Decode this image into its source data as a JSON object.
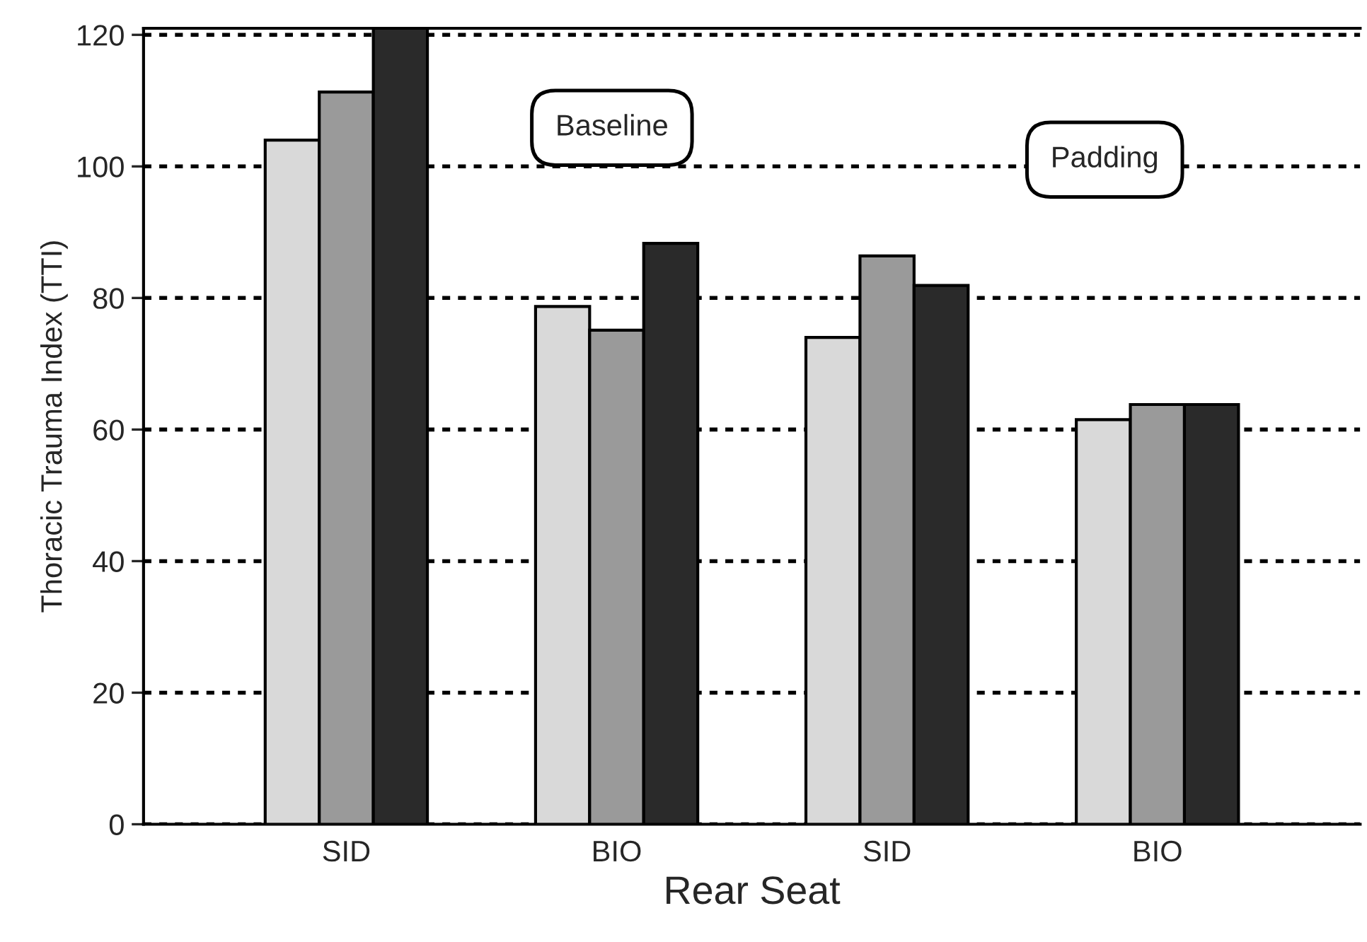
{
  "chart_data": {
    "type": "bar",
    "ylabel": "Thoracic Trauma Index (TTI)",
    "xlabel": "Rear Seat",
    "categories": [
      "SID",
      "BIO",
      "SID",
      "BIO"
    ],
    "series": [
      {
        "color": "#d9d9d9",
        "values": [
          104,
          78.7,
          74,
          61.5
        ]
      },
      {
        "color": "#9a9a9a",
        "values": [
          111.3,
          75.1,
          86.4,
          63.8
        ]
      },
      {
        "color": "#2a2a2a",
        "values": [
          121,
          88.3,
          81.9,
          63.8
        ]
      }
    ],
    "ylim": [
      0,
      121
    ],
    "yticks": [
      0,
      20,
      40,
      60,
      80,
      100,
      120
    ],
    "grid": "y",
    "line_style": "dotted",
    "annotations": [
      "Baseline",
      "Padding"
    ]
  }
}
